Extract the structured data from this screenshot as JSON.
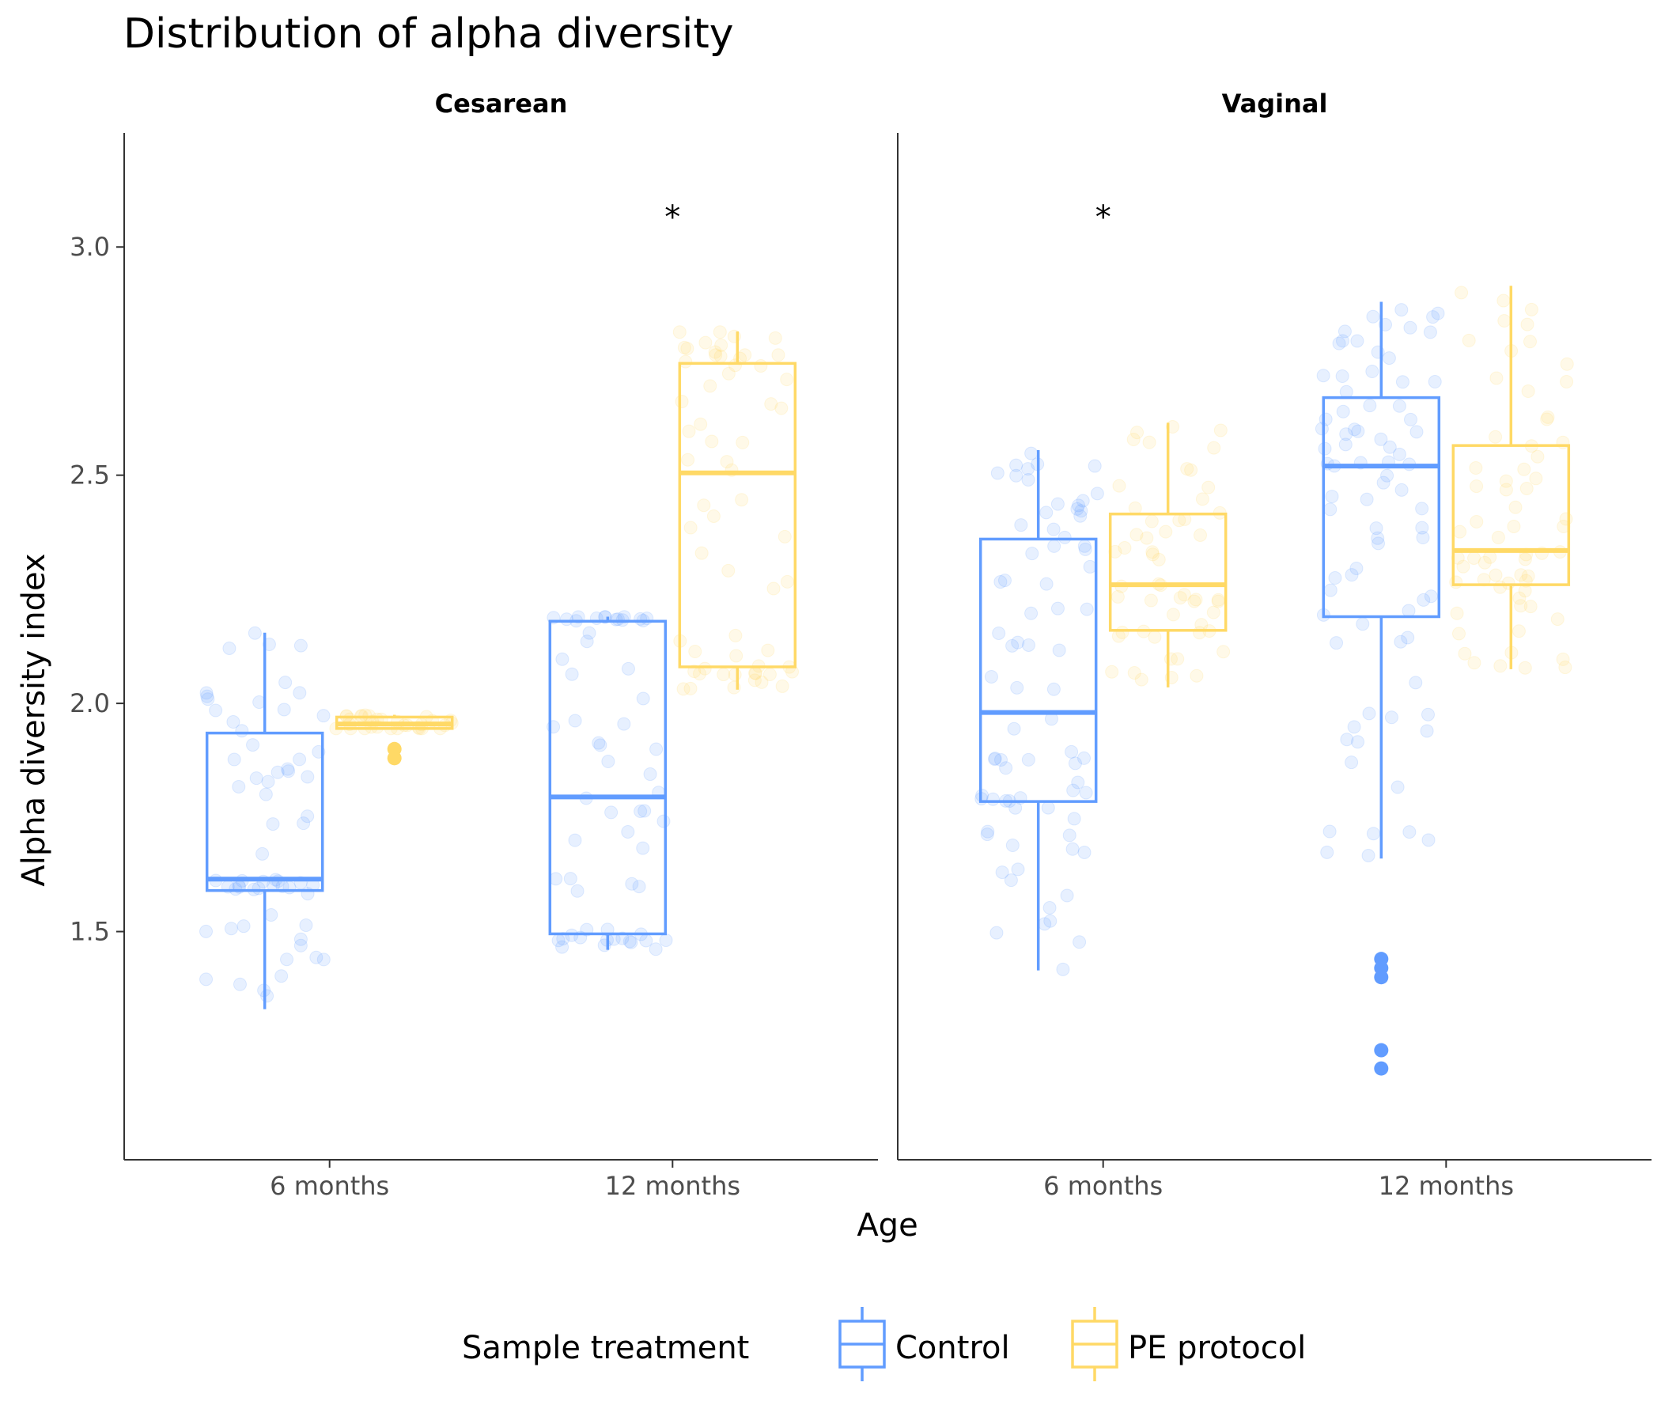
{
  "chart_data": {
    "type": "boxplot",
    "title": "Distribution of alpha diversity",
    "xlabel": "Age",
    "ylabel": "Alpha diversity index",
    "ylim": [
      1.0,
      3.25
    ],
    "yticks": [
      1.5,
      2.0,
      2.5,
      3.0
    ],
    "ytick_labels": [
      "1.5",
      "2.0",
      "2.5",
      "3.0"
    ],
    "categories": [
      "6 months",
      "12 months"
    ],
    "legend": {
      "title": "Sample treatment",
      "position": "bottom",
      "entries": [
        {
          "label": "Control",
          "color": "#619CFF"
        },
        {
          "label": "PE protocol",
          "color": "#FFD966"
        }
      ]
    },
    "panels": [
      {
        "name": "Cesarean",
        "significance": [
          {
            "category": "12 months",
            "label": "*",
            "y": 3.07
          }
        ],
        "groups": [
          {
            "category": "6 months",
            "series": "Control",
            "min": 1.33,
            "q1": 1.59,
            "median": 1.615,
            "q3": 1.935,
            "max": 2.155,
            "outliers": []
          },
          {
            "category": "6 months",
            "series": "PE protocol",
            "min": 1.945,
            "q1": 1.945,
            "median": 1.955,
            "q3": 1.97,
            "max": 1.975,
            "outliers": [
              1.88,
              1.9
            ]
          },
          {
            "category": "12 months",
            "series": "Control",
            "min": 1.46,
            "q1": 1.495,
            "median": 1.795,
            "q3": 2.18,
            "max": 2.19,
            "outliers": []
          },
          {
            "category": "12 months",
            "series": "PE protocol",
            "min": 2.03,
            "q1": 2.08,
            "median": 2.505,
            "q3": 2.745,
            "max": 2.815,
            "outliers": []
          }
        ]
      },
      {
        "name": "Vaginal",
        "significance": [
          {
            "category": "6 months",
            "label": "*",
            "y": 3.07
          }
        ],
        "groups": [
          {
            "category": "6 months",
            "series": "Control",
            "min": 1.415,
            "q1": 1.785,
            "median": 1.98,
            "q3": 2.36,
            "max": 2.555,
            "outliers": []
          },
          {
            "category": "6 months",
            "series": "PE protocol",
            "min": 2.035,
            "q1": 2.16,
            "median": 2.26,
            "q3": 2.415,
            "max": 2.615,
            "outliers": []
          },
          {
            "category": "12 months",
            "series": "Control",
            "min": 1.66,
            "q1": 2.19,
            "median": 2.52,
            "q3": 2.67,
            "max": 2.88,
            "outliers": [
              1.2,
              1.24,
              1.4,
              1.42,
              1.44
            ]
          },
          {
            "category": "12 months",
            "series": "PE protocol",
            "min": 2.075,
            "q1": 2.26,
            "median": 2.335,
            "q3": 2.565,
            "max": 2.915,
            "outliers": []
          }
        ]
      }
    ]
  }
}
